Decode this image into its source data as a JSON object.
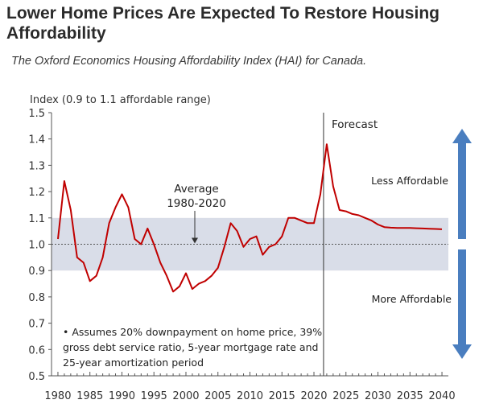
{
  "header": {
    "title": "Lower Home Prices Are Expected To Restore Housing Affordability",
    "subtitle": "The Oxford Economics Housing Affordability Index (HAI) for Canada."
  },
  "chart_data": {
    "type": "line",
    "ylabel": "Index (0.9 to 1.1 affordable range)",
    "xlim": [
      1979,
      2041
    ],
    "ylim": [
      0.5,
      1.5
    ],
    "x_ticks": [
      "1980",
      "1985",
      "1990",
      "1995",
      "2000",
      "2005",
      "2010",
      "2015",
      "2020",
      "2025",
      "2030",
      "2035",
      "2040"
    ],
    "y_ticks": [
      "0.5",
      "0.6",
      "0.7",
      "0.8",
      "0.9",
      "1.0",
      "1.1",
      "1.2",
      "1.3",
      "1.4",
      "1.5"
    ],
    "affordable_band": [
      0.9,
      1.1
    ],
    "average_line": 1.0,
    "forecast_start": 2021.5,
    "colors": {
      "line": "#c00000",
      "band": "#d9dde8",
      "arrow": "#4a7ebf",
      "average": "#555555"
    },
    "series": [
      {
        "x": [
          1980,
          1981,
          1982,
          1983,
          1984,
          1985,
          1986,
          1987,
          1988,
          1989,
          1990,
          1991,
          1992,
          1993,
          1994,
          1995,
          1996,
          1997,
          1998,
          1999,
          2000,
          2001,
          2002,
          2003,
          2004,
          2005,
          2006,
          2007,
          2008,
          2009,
          2010,
          2011,
          2012,
          2013,
          2014,
          2015,
          2016,
          2017,
          2018,
          2019,
          2020,
          2021,
          2022,
          2023,
          2024,
          2025,
          2026,
          2027,
          2028,
          2029,
          2030,
          2031,
          2032,
          2033,
          2034,
          2035,
          2036,
          2037,
          2038,
          2039,
          2040
        ],
        "y": [
          1.02,
          1.24,
          1.13,
          0.95,
          0.93,
          0.86,
          0.88,
          0.95,
          1.08,
          1.14,
          1.19,
          1.14,
          1.02,
          1.0,
          1.06,
          1.0,
          0.93,
          0.88,
          0.82,
          0.84,
          0.89,
          0.83,
          0.85,
          0.86,
          0.88,
          0.91,
          0.99,
          1.08,
          1.05,
          0.99,
          1.02,
          1.03,
          0.96,
          0.99,
          1.0,
          1.03,
          1.1,
          1.1,
          1.09,
          1.08,
          1.08,
          1.19,
          1.38,
          1.22,
          1.13,
          1.125,
          1.115,
          1.11,
          1.1,
          1.09,
          1.075,
          1.065,
          1.063,
          1.062,
          1.062,
          1.062,
          1.061,
          1.06,
          1.059,
          1.058,
          1.057
        ]
      }
    ],
    "annotations": {
      "forecast": "Forecast",
      "average": [
        "Average",
        "1980-2020"
      ],
      "less_affordable": "Less Affordable",
      "more_affordable": "More Affordable",
      "note": [
        "• Assumes 20% downpayment on home price, 39%",
        "gross debt service ratio, 5-year mortgage rate and",
        "25-year amortization period"
      ]
    }
  }
}
